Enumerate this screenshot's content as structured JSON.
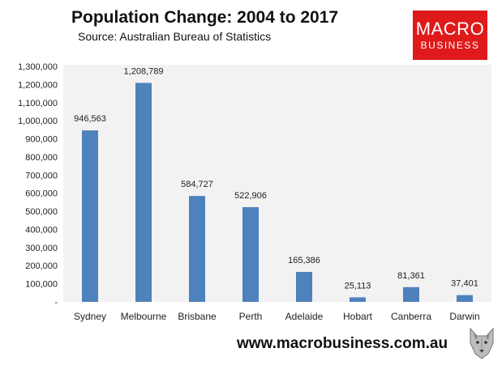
{
  "header": {
    "title": "Population Change: 2004 to 2017",
    "subtitle": "Source: Australian Bureau of Statistics"
  },
  "logo": {
    "line1": "MACRO",
    "line2": "BUSINESS",
    "background": "#e01a1a"
  },
  "footer": {
    "url": "www.macrobusiness.com.au",
    "icon": "wolf-head-icon"
  },
  "colors": {
    "bar": "#4f81bd",
    "plot_background": "#f2f2f2",
    "text": "#222222"
  },
  "chart_data": {
    "type": "bar",
    "title": "Population Change: 2004 to 2017",
    "subtitle": "Source: Australian Bureau of Statistics",
    "xlabel": "",
    "ylabel": "",
    "categories": [
      "Sydney",
      "Melbourne",
      "Brisbane",
      "Perth",
      "Adelaide",
      "Hobart",
      "Canberra",
      "Darwin"
    ],
    "values": [
      946563,
      1208789,
      584727,
      522906,
      165386,
      25113,
      81361,
      37401
    ],
    "data_labels": [
      "946,563",
      "1,208,789",
      "584,727",
      "522,906",
      "165,386",
      "25,113",
      "81,361",
      "37,401"
    ],
    "ylim": [
      0,
      1300000
    ],
    "yticks": [
      0,
      100000,
      200000,
      300000,
      400000,
      500000,
      600000,
      700000,
      800000,
      900000,
      1000000,
      1100000,
      1200000,
      1300000
    ],
    "ytick_labels": [
      "-",
      "100,000",
      "200,000",
      "300,000",
      "400,000",
      "500,000",
      "600,000",
      "700,000",
      "800,000",
      "900,000",
      "1,000,000",
      "1,100,000",
      "1,200,000",
      "1,300,000"
    ],
    "grid": false,
    "legend": "none"
  }
}
